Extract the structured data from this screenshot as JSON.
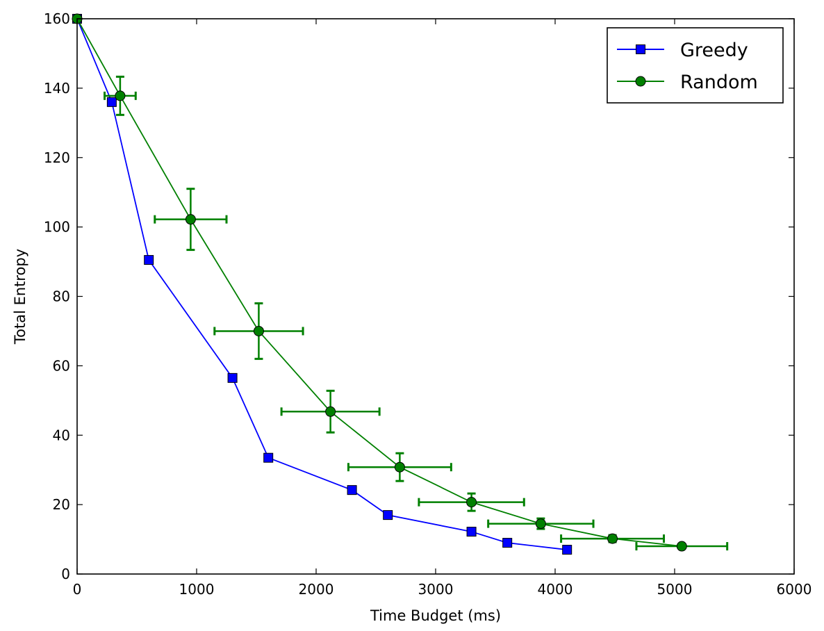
{
  "chart_data": {
    "type": "line",
    "title": "",
    "xlabel": "Time Budget (ms)",
    "ylabel": "Total Entropy",
    "xlim": [
      0,
      6000
    ],
    "ylim": [
      0,
      160
    ],
    "xticks": [
      0,
      1000,
      2000,
      3000,
      4000,
      5000,
      6000
    ],
    "yticks": [
      0,
      20,
      40,
      60,
      80,
      100,
      120,
      140,
      160
    ],
    "grid": false,
    "legend_position": "top-right",
    "series": [
      {
        "name": "Greedy",
        "color": "#0000ff",
        "marker": "square",
        "x": [
          0,
          290,
          600,
          1300,
          1600,
          2300,
          2600,
          3300,
          3600,
          4100
        ],
        "y": [
          160,
          136,
          90.5,
          56.5,
          33.5,
          24.2,
          17,
          12.2,
          9,
          7
        ]
      },
      {
        "name": "Random",
        "color": "#008000",
        "marker": "circle",
        "x": [
          0,
          360,
          950,
          1520,
          2120,
          2700,
          3300,
          3880,
          4480,
          5060
        ],
        "y": [
          160,
          137.8,
          102.2,
          70,
          46.8,
          30.8,
          20.7,
          14.5,
          10.2,
          8
        ],
        "xerr": [
          0,
          130,
          300,
          370,
          410,
          430,
          440,
          440,
          430,
          380
        ],
        "yerr": [
          0,
          5.5,
          8.8,
          8,
          6,
          4,
          2.5,
          1.5,
          1,
          0.6
        ]
      }
    ]
  }
}
